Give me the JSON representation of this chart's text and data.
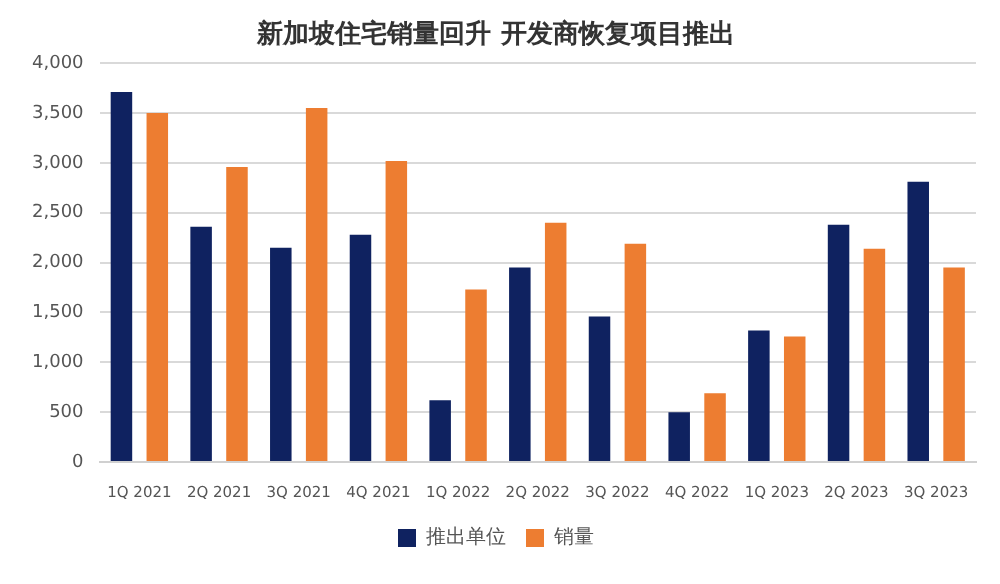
{
  "chart_data": {
    "type": "bar",
    "title": "新加坡住宅销量回升 开发商恢复项目推出",
    "categories": [
      "1Q 2021",
      "2Q 2021",
      "3Q 2021",
      "4Q 2021",
      "1Q 2022",
      "2Q 2022",
      "3Q 2022",
      "4Q 2022",
      "1Q 2023",
      "2Q 2023",
      "3Q 2023"
    ],
    "series": [
      {
        "name": "推出单位",
        "color": "#0f2260",
        "values": [
          3710,
          2360,
          2150,
          2280,
          620,
          1950,
          1460,
          500,
          1320,
          2380,
          2810
        ]
      },
      {
        "name": "销量",
        "color": "#ed7d31",
        "values": [
          3500,
          2960,
          3550,
          3020,
          1730,
          2400,
          2190,
          690,
          1260,
          2140,
          1950
        ]
      }
    ],
    "ylim": [
      0,
      4000
    ],
    "yticks": [
      0,
      500,
      {
        "value": 1000,
        "label": "1,000"
      },
      {
        "value": 1500,
        "label": "1,500"
      },
      {
        "value": 2000,
        "label": "2,000"
      },
      {
        "value": 2500,
        "label": "2,500"
      },
      {
        "value": 3000,
        "label": "3,000"
      },
      {
        "value": 3500,
        "label": "3,500"
      },
      {
        "value": 4000,
        "label": "4,000"
      }
    ],
    "grid": "y",
    "legend": "bottom"
  }
}
